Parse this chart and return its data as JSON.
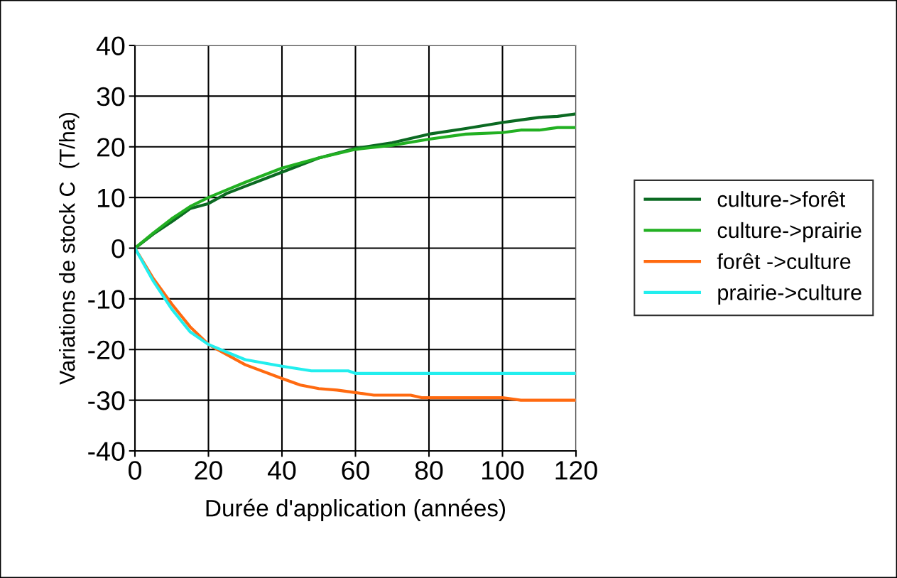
{
  "chart_data": {
    "type": "line",
    "xlabel": "Durée d'application (années)",
    "ylabel": "Variations de stock C  (T/ha)",
    "xlim": [
      0,
      120
    ],
    "xticks": [
      0,
      20,
      40,
      60,
      80,
      100,
      120
    ],
    "ylim": [
      -40,
      40
    ],
    "yticks": [
      -40,
      -30,
      -20,
      -10,
      0,
      10,
      20,
      30,
      40
    ],
    "grid": true,
    "legend": "right",
    "marker": "none",
    "line_style": "solid",
    "series": [
      {
        "name": "culture->forêt",
        "color": "#0b6a22",
        "x": [
          0,
          5,
          10,
          15,
          20,
          25,
          30,
          40,
          50,
          60,
          70,
          80,
          90,
          100,
          105,
          110,
          115,
          120
        ],
        "values": [
          0,
          2.8,
          5.2,
          7.8,
          8.8,
          10.8,
          12.2,
          15,
          17.8,
          19.7,
          20.8,
          22.5,
          23.6,
          24.8,
          25.3,
          25.8,
          26,
          26.5
        ]
      },
      {
        "name": "culture->prairie",
        "color": "#22b022",
        "x": [
          0,
          5,
          10,
          15,
          20,
          25,
          30,
          40,
          50,
          60,
          70,
          80,
          90,
          100,
          105,
          110,
          115,
          120
        ],
        "values": [
          0,
          3,
          5.8,
          8.2,
          10,
          11.5,
          13,
          15.8,
          17.8,
          19.5,
          20.3,
          21.5,
          22.5,
          22.8,
          23.3,
          23.3,
          23.8,
          23.8
        ]
      },
      {
        "name": "forêt ->culture",
        "color": "#ff6a10",
        "x": [
          0,
          5,
          10,
          15,
          20,
          25,
          30,
          40,
          45,
          50,
          55,
          60,
          65,
          75,
          78,
          100,
          105,
          120
        ],
        "values": [
          0,
          -6,
          -11,
          -15.5,
          -19,
          -21,
          -23,
          -25.7,
          -27,
          -27.7,
          -28,
          -28.5,
          -29,
          -29,
          -29.5,
          -29.5,
          -30,
          -30
        ]
      },
      {
        "name": "prairie->culture",
        "color": "#22eeee",
        "x": [
          0,
          5,
          10,
          15,
          20,
          25,
          30,
          40,
          48,
          58,
          60,
          120
        ],
        "values": [
          0,
          -6.5,
          -12,
          -16.5,
          -19,
          -20.5,
          -22,
          -23.3,
          -24.2,
          -24.2,
          -24.7,
          -24.7
        ]
      }
    ]
  }
}
